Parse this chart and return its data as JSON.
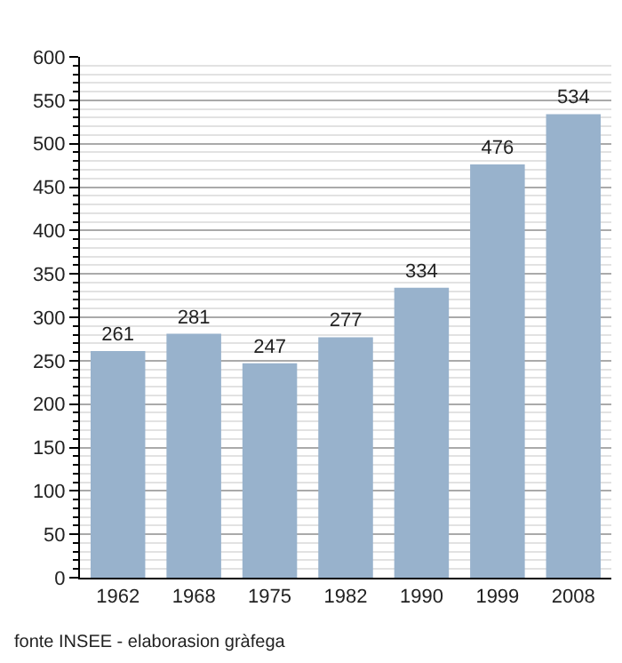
{
  "chart_data": {
    "type": "bar",
    "categories": [
      "1962",
      "1968",
      "1975",
      "1982",
      "1990",
      "1999",
      "2008"
    ],
    "values": [
      261,
      281,
      247,
      277,
      334,
      476,
      534
    ],
    "color": "#98b2cc",
    "ylim": [
      0,
      600
    ],
    "yticks": [
      0,
      50,
      100,
      150,
      200,
      250,
      300,
      350,
      400,
      450,
      500,
      550,
      600
    ],
    "grid": true,
    "data_labels": true,
    "annotations": [
      "fonte INSEE - elaborasion gràfega"
    ]
  }
}
